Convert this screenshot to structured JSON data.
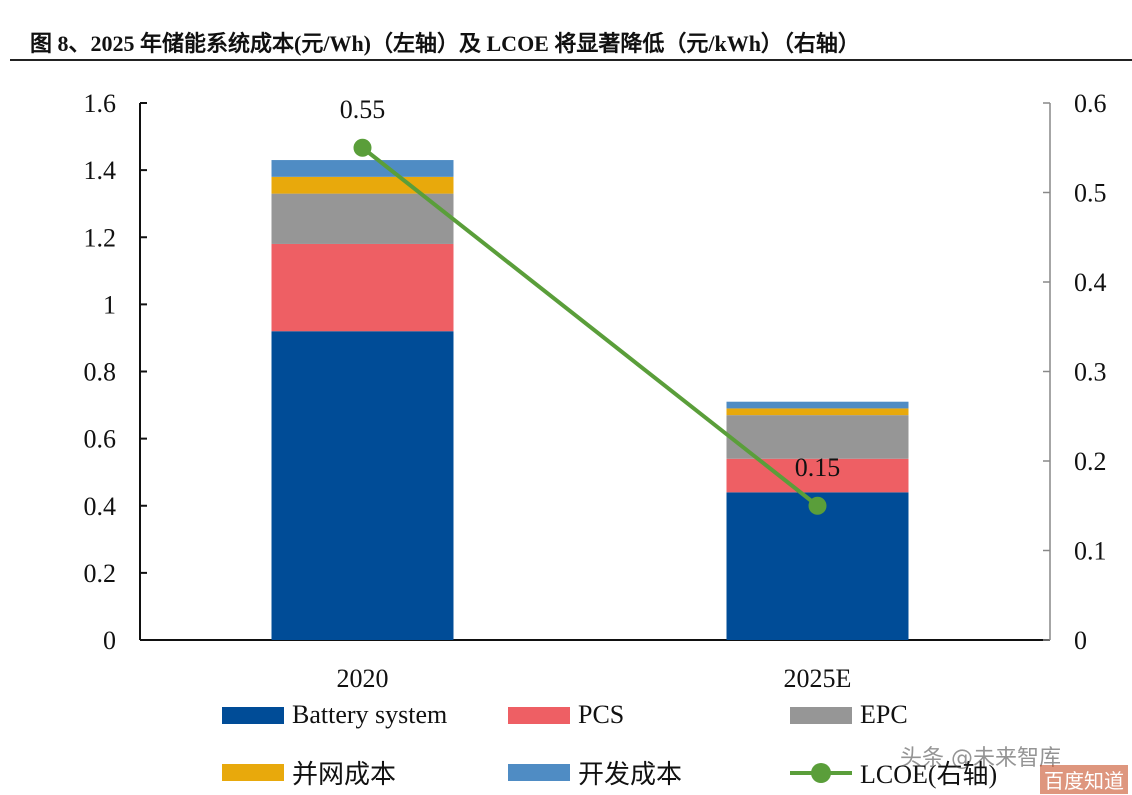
{
  "title": "图 8、2025 年储能系统成本(元/Wh)（左轴）及 LCOE 将显著降低（元/kWh）（右轴）",
  "watermark": "头条 @未来智库",
  "watermark2": "百度知道",
  "chart_data": {
    "type": "bar",
    "stacked": true,
    "categories": [
      "2020",
      "2025E"
    ],
    "series": [
      {
        "name": "Battery system",
        "axis": "left",
        "color": "#004C97",
        "values": [
          0.92,
          0.44
        ]
      },
      {
        "name": "PCS",
        "axis": "left",
        "color": "#EE5F64",
        "values": [
          0.26,
          0.1
        ]
      },
      {
        "name": "EPC",
        "axis": "left",
        "color": "#969696",
        "values": [
          0.15,
          0.13
        ]
      },
      {
        "name": "并网成本",
        "axis": "left",
        "color": "#E8A90C",
        "values": [
          0.05,
          0.02
        ]
      },
      {
        "name": "开发成本",
        "axis": "left",
        "color": "#4F8CC4",
        "values": [
          0.05,
          0.02
        ]
      },
      {
        "name": "LCOE(右轴)",
        "axis": "right",
        "type": "line",
        "color": "#5A9E3A",
        "values": [
          0.55,
          0.15
        ],
        "data_labels": [
          "0.55",
          "0.15"
        ]
      }
    ],
    "left_axis": {
      "ylim": [
        0,
        1.6
      ],
      "ticks": [
        "0",
        "0.2",
        "0.4",
        "0.6",
        "0.8",
        "1",
        "1.2",
        "1.4",
        "1.6"
      ]
    },
    "right_axis": {
      "ylim": [
        0,
        0.6
      ],
      "ticks": [
        "0",
        "0.1",
        "0.2",
        "0.3",
        "0.4",
        "0.5",
        "0.6"
      ]
    },
    "grid": false,
    "legend_placement": "bottom"
  }
}
